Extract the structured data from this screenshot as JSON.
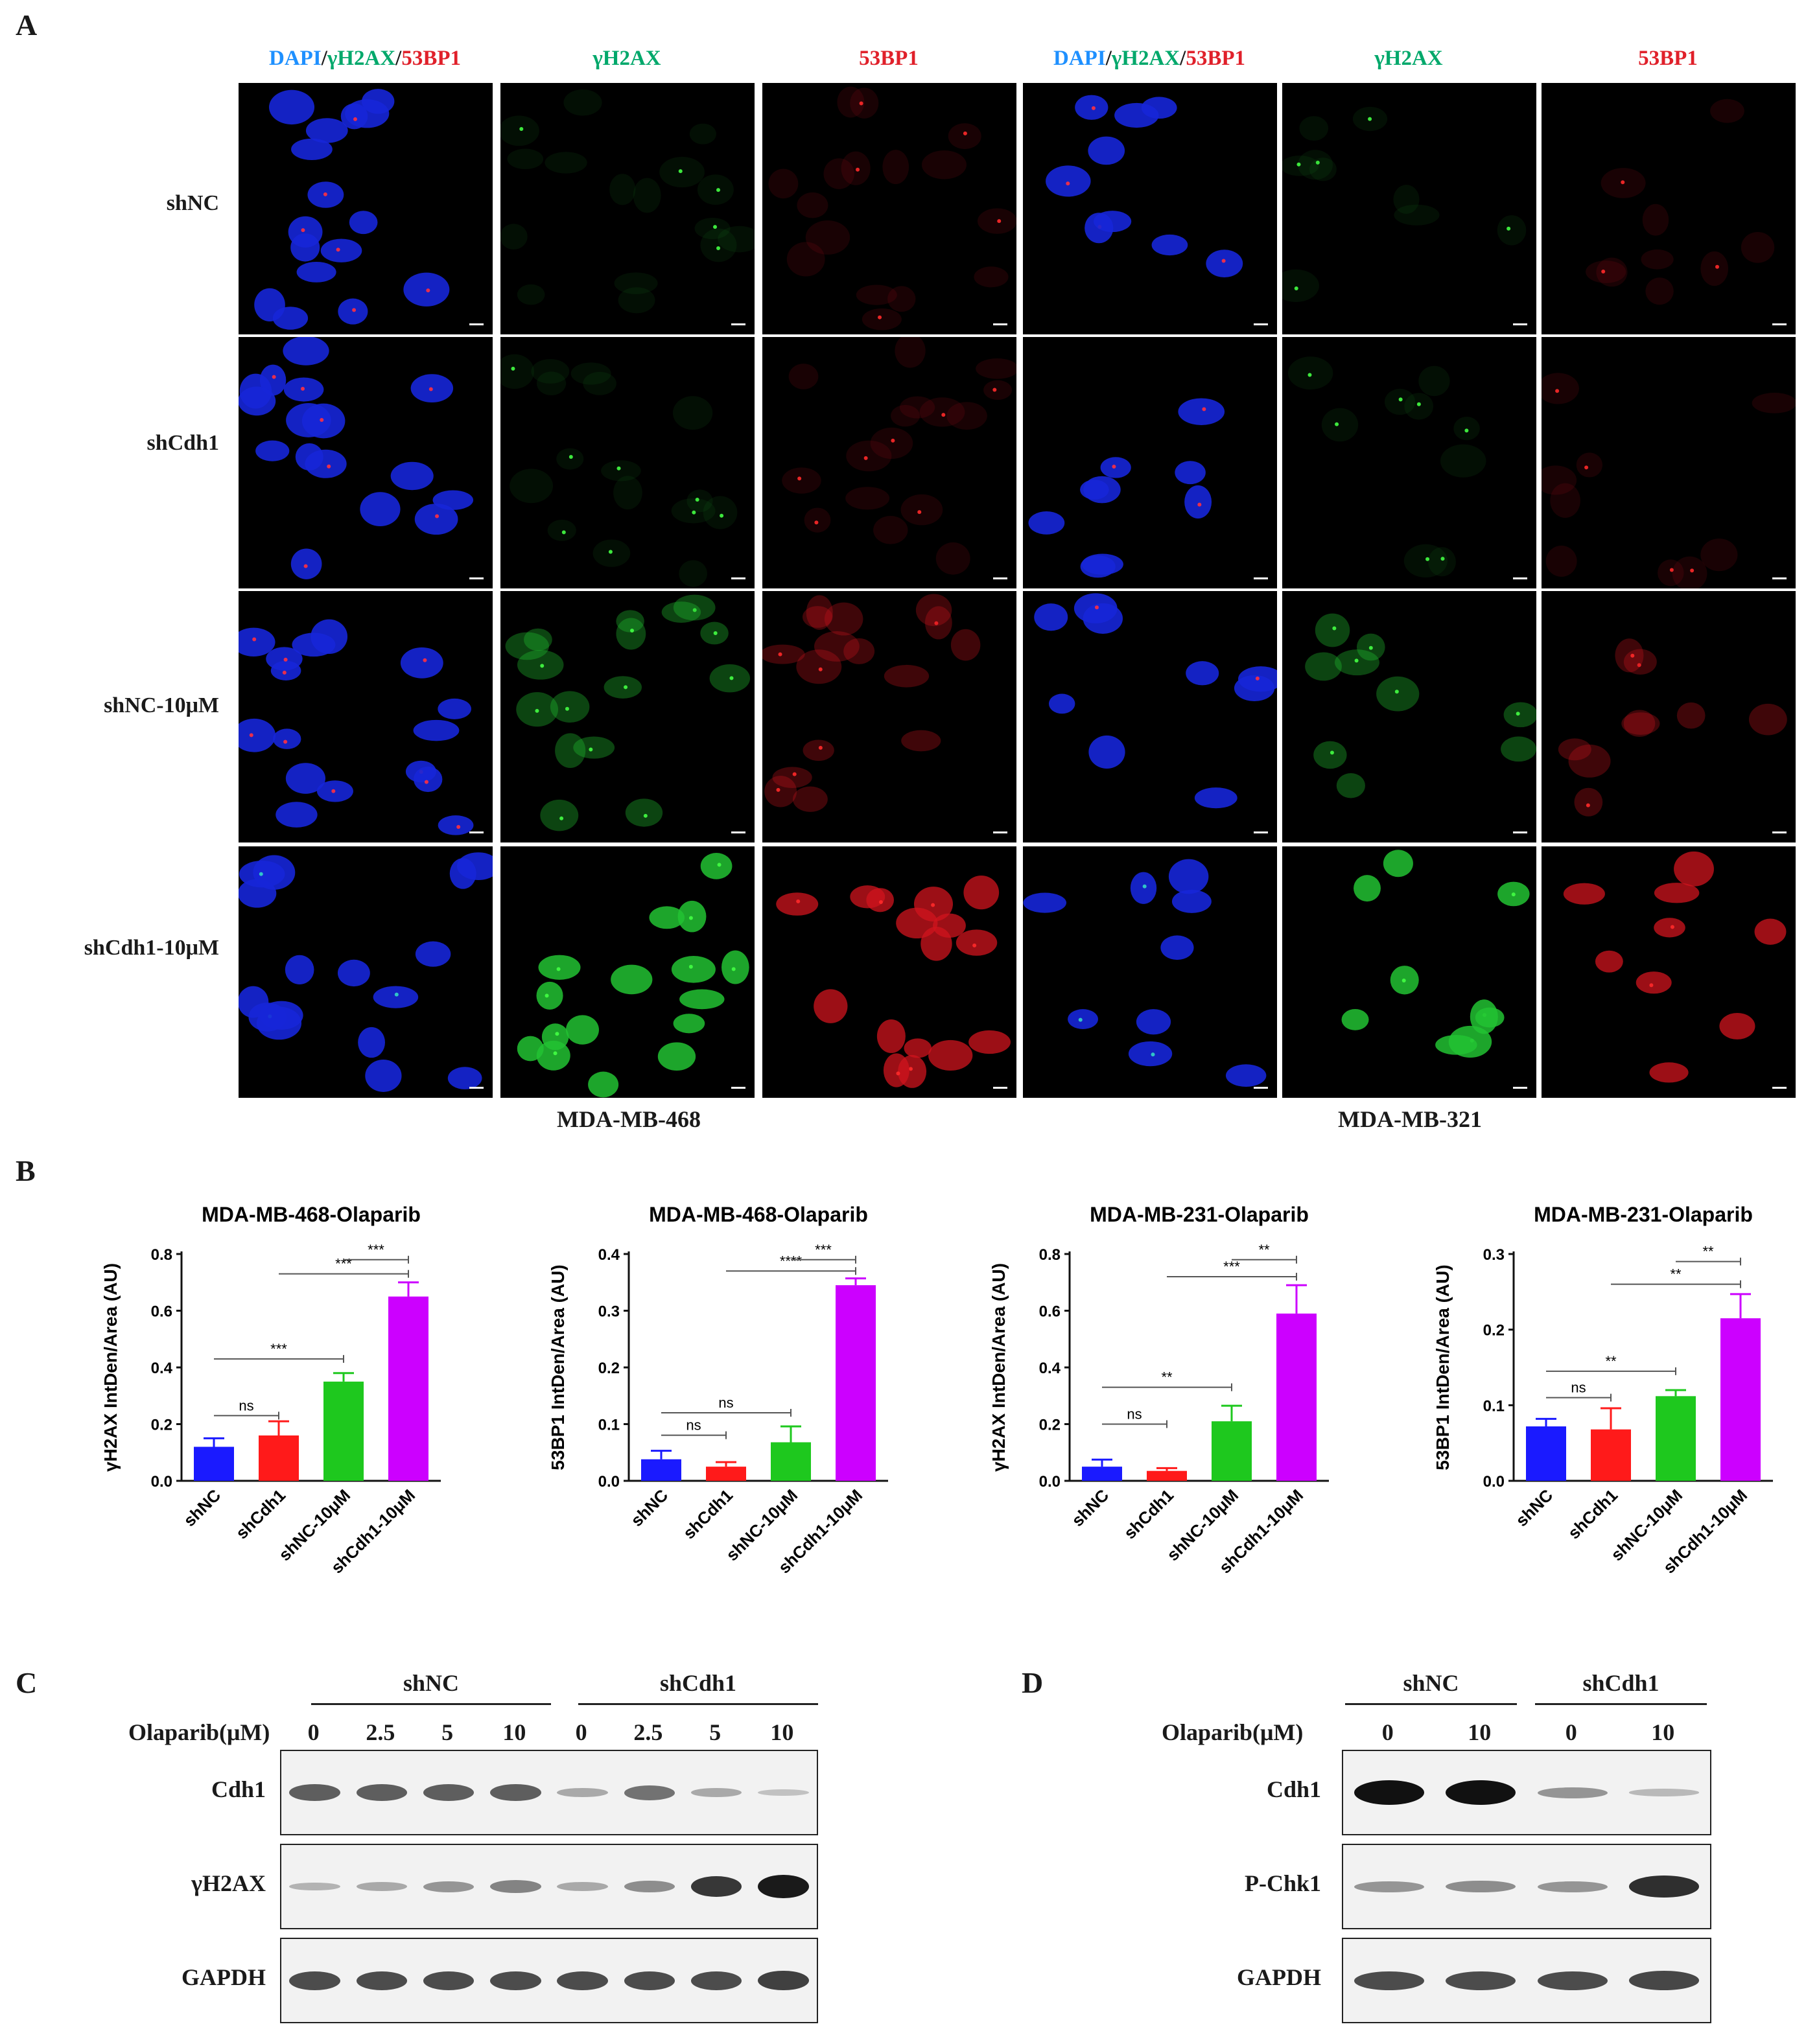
{
  "panel_a": {
    "letter": "A",
    "column_heads": {
      "merge_prefix": "DAPI",
      "merge_sep": "/",
      "merge_gamma": "γH2AX",
      "merge_53": "53BP1",
      "gamma": "γH2AX",
      "bp53": "53BP1"
    },
    "rows": [
      "shNC",
      "shCdh1",
      "shNC-10μM",
      "shCdh1-10μM"
    ],
    "cell_lines": [
      "MDA-MB-468",
      "MDA-MB-321"
    ],
    "colors": {
      "dapi": "#1e90ff",
      "gamma": "#00a86b",
      "bp53": "#e0202a"
    }
  },
  "panel_b_letter": "B",
  "chart_data": [
    {
      "type": "bar",
      "title": "MDA-MB-468-Olaparib",
      "ylabel": "γH2AX IntDen/Area (AU)",
      "categories": [
        "shNC",
        "shCdh1",
        "shNC-10μM",
        "shCdh1-10μM"
      ],
      "values": [
        0.12,
        0.16,
        0.35,
        0.65
      ],
      "errors": [
        0.03,
        0.05,
        0.03,
        0.05
      ],
      "colors": [
        "#1a1aff",
        "#ff1a1a",
        "#1ec81e",
        "#cc00ff"
      ],
      "ylim": [
        0,
        0.8
      ],
      "yticks": [
        "0.0",
        "0.2",
        "0.4",
        "0.6",
        "0.8"
      ],
      "sig": [
        {
          "from": 0,
          "to": 1,
          "label": "ns",
          "level": 0.23
        },
        {
          "from": 0,
          "to": 2,
          "label": "***",
          "level": 0.43
        },
        {
          "from": 1,
          "to": 3,
          "label": "***",
          "level": 0.73
        },
        {
          "from": 2,
          "to": 3,
          "label": "***",
          "level": 0.78
        }
      ]
    },
    {
      "type": "bar",
      "title": "MDA-MB-468-Olaparib",
      "ylabel": "53BP1 IntDen/Area (AU)",
      "categories": [
        "shNC",
        "shCdh1",
        "shNC-10μM",
        "shCdh1-10μM"
      ],
      "values": [
        0.038,
        0.025,
        0.068,
        0.345
      ],
      "errors": [
        0.015,
        0.008,
        0.028,
        0.012
      ],
      "colors": [
        "#1a1aff",
        "#ff1a1a",
        "#1ec81e",
        "#cc00ff"
      ],
      "ylim": [
        0,
        0.4
      ],
      "yticks": [
        "0.0",
        "0.1",
        "0.2",
        "0.3",
        "0.4"
      ],
      "sig": [
        {
          "from": 0,
          "to": 2,
          "label": "ns",
          "level": 0.12
        },
        {
          "from": 0,
          "to": 1,
          "label": "ns",
          "level": 0.0
        },
        {
          "from": 1,
          "to": 3,
          "label": "****",
          "level": 0.37
        },
        {
          "from": 2,
          "to": 3,
          "label": "***",
          "level": 0.39
        }
      ]
    },
    {
      "type": "bar",
      "title": "MDA-MB-231-Olaparib",
      "ylabel": "γH2AX IntDen/Area (AU)",
      "categories": [
        "shNC",
        "shCdh1",
        "shNC-10μM",
        "shCdh1-10μM"
      ],
      "values": [
        0.05,
        0.035,
        0.21,
        0.59
      ],
      "errors": [
        0.025,
        0.01,
        0.055,
        0.1
      ],
      "colors": [
        "#1a1aff",
        "#ff1a1a",
        "#1ec81e",
        "#cc00ff"
      ],
      "ylim": [
        0,
        0.8
      ],
      "yticks": [
        "0.0",
        "0.2",
        "0.4",
        "0.6",
        "0.8"
      ],
      "sig": [
        {
          "from": 0,
          "to": 1,
          "label": "ns",
          "level": 0.2
        },
        {
          "from": 0,
          "to": 2,
          "label": "**",
          "level": 0.33
        },
        {
          "from": 1,
          "to": 3,
          "label": "***",
          "level": 0.72
        },
        {
          "from": 2,
          "to": 3,
          "label": "**",
          "level": 0.78
        }
      ]
    },
    {
      "type": "bar",
      "title": "MDA-MB-231-Olaparib",
      "ylabel": "53BP1 IntDen/Area (AU)",
      "categories": [
        "shNC",
        "shCdh1",
        "shNC-10μM",
        "shCdh1-10μM"
      ],
      "values": [
        0.072,
        0.068,
        0.112,
        0.215
      ],
      "errors": [
        0.01,
        0.028,
        0.008,
        0.032
      ],
      "colors": [
        "#1a1aff",
        "#ff1a1a",
        "#1ec81e",
        "#cc00ff"
      ],
      "ylim": [
        0,
        0.3
      ],
      "yticks": [
        "0.0",
        "0.1",
        "0.2",
        "0.3"
      ],
      "sig": [
        {
          "from": 0,
          "to": 1,
          "label": "ns",
          "level": 0.11
        },
        {
          "from": 0,
          "to": 2,
          "label": "**",
          "level": 0.145
        },
        {
          "from": 1,
          "to": 3,
          "label": "**",
          "level": 0.26
        },
        {
          "from": 2,
          "to": 3,
          "label": "**",
          "level": 0.29
        }
      ]
    }
  ],
  "panel_c": {
    "letter": "C",
    "groups": [
      "shNC",
      "shCdh1"
    ],
    "treatment_label": "Olaparib(μM)",
    "doses": [
      "0",
      "2.5",
      "5",
      "10",
      "0",
      "2.5",
      "5",
      "10"
    ],
    "blots": [
      "Cdh1",
      "γH2AX",
      "GAPDH"
    ]
  },
  "panel_d": {
    "letter": "D",
    "groups": [
      "shNC",
      "shCdh1"
    ],
    "treatment_label": "Olaparib(μM)",
    "doses": [
      "0",
      "10",
      "0",
      "10"
    ],
    "blots": [
      "Cdh1",
      "P-Chk1",
      "GAPDH"
    ]
  }
}
